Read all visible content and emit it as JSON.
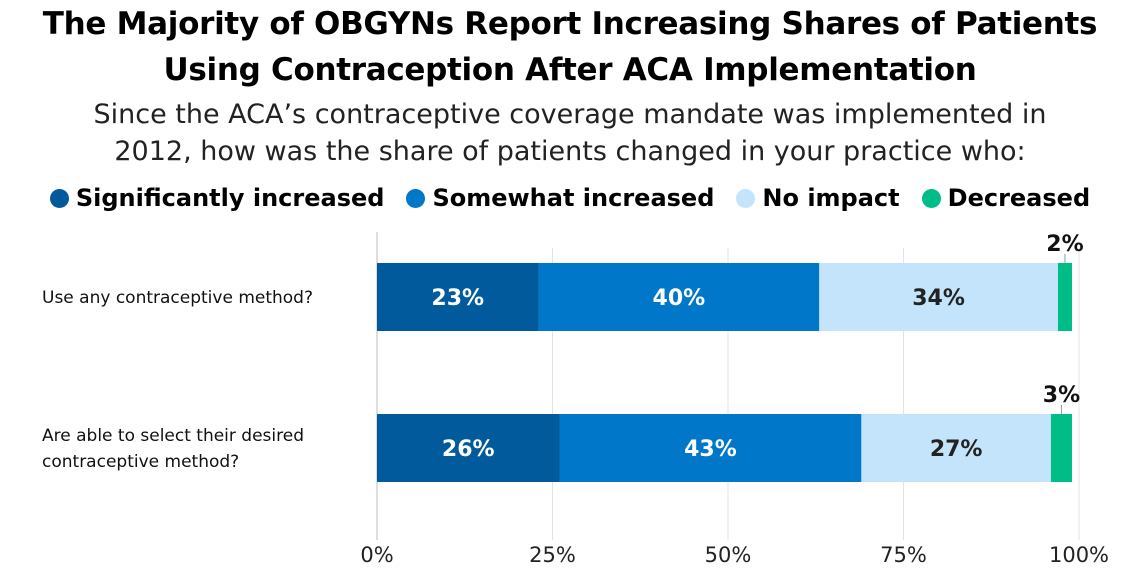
{
  "chart_data": {
    "type": "bar",
    "orientation": "horizontal",
    "stacked": true,
    "title": "The Majority of OBGYNs Report Increasing Shares of Patients Using Contraception After ACA Implementation",
    "title_lines": [
      "The Majority of OBGYNs Report Increasing Shares of Patients",
      "Using Contraception After ACA Implementation"
    ],
    "subtitle_lines": [
      "Since the ACA’s contraceptive coverage mandate was implemented in",
      "2012, how was the share of patients changed in your practice who:"
    ],
    "categories": [
      [
        "Use any contraceptive method?"
      ],
      [
        "Are able to select their desired",
        "contraceptive method?"
      ]
    ],
    "series": [
      {
        "name": "Significantly increased",
        "color": "#005A9C",
        "label_color": "#ffffff",
        "values": [
          23,
          26
        ],
        "labels": [
          "23%",
          "26%"
        ]
      },
      {
        "name": "Somewhat increased",
        "color": "#0077C8",
        "label_color": "#ffffff",
        "values": [
          40,
          43
        ],
        "labels": [
          "40%",
          "43%"
        ]
      },
      {
        "name": "No impact",
        "color": "#C4E4FB",
        "label_color": "#222222",
        "values": [
          34,
          27
        ],
        "labels": [
          "34%",
          "27%"
        ]
      },
      {
        "name": "Decreased",
        "color": "#00BC87",
        "label_color": "#111111",
        "values": [
          2,
          3
        ],
        "labels": [
          "2%",
          "3%"
        ],
        "label_position": "above"
      }
    ],
    "xlim": [
      0,
      100
    ],
    "xticks": [
      0,
      25,
      50,
      75,
      100
    ],
    "xtick_labels": [
      "0%",
      "25%",
      "50%",
      "75%",
      "100%"
    ],
    "grid": true,
    "legend_position": "top",
    "xlabel": "",
    "ylabel": ""
  }
}
